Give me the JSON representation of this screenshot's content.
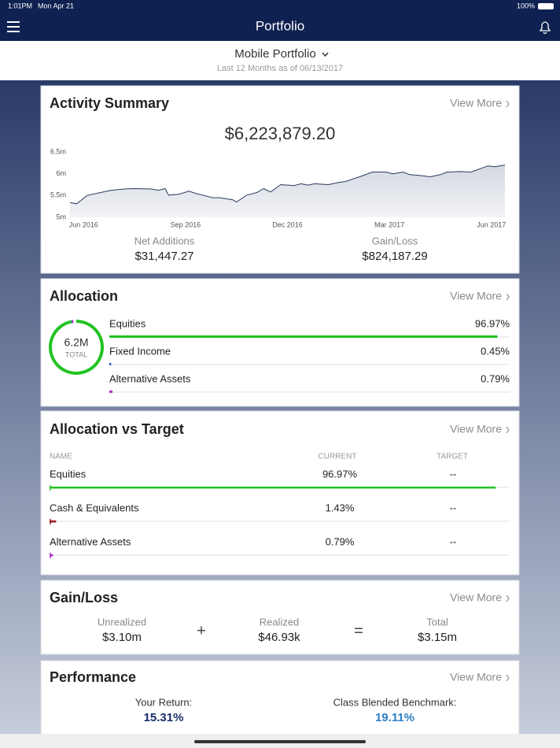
{
  "status_bar": {
    "time": "1:01PM",
    "date": "Mon Apr 21",
    "battery": "100%"
  },
  "header": {
    "title": "Portfolio"
  },
  "subheader": {
    "portfolio": "Mobile Portfolio",
    "period": "Last 12 Months as of 06/13/2017"
  },
  "activity_summary": {
    "title": "Activity Summary",
    "view_more": "View More",
    "total": "$6,223,879.20",
    "chart": {
      "type": "line",
      "color": "#2b3a5e",
      "x": [
        -0.4,
        -0.2,
        0.1,
        0.5,
        0.8,
        1.2,
        1.5,
        2.0,
        2.2,
        2.4,
        2.5,
        2.8,
        3.1,
        3.3,
        3.8,
        4.0,
        4.4,
        4.5,
        4.8,
        5.1,
        5.3,
        5.5,
        5.8,
        6.2,
        6.4,
        6.6,
        6.8,
        7.2,
        7.5,
        7.7,
        8.2,
        8.5,
        8.9,
        9.1,
        9.4,
        9.6,
        9.9,
        10.2,
        10.5,
        10.7,
        11.1,
        11.4,
        11.9,
        12.1,
        12.4
      ],
      "values": [
        5.34,
        5.31,
        5.5,
        5.57,
        5.62,
        5.65,
        5.66,
        5.65,
        5.62,
        5.66,
        5.51,
        5.53,
        5.6,
        5.55,
        5.45,
        5.45,
        5.4,
        5.35,
        5.51,
        5.57,
        5.66,
        5.58,
        5.75,
        5.73,
        5.77,
        5.74,
        5.77,
        5.75,
        5.8,
        5.82,
        5.95,
        6.04,
        6.04,
        6.0,
        6.04,
        5.98,
        5.96,
        5.93,
        5.98,
        6.04,
        6.05,
        6.04,
        6.18,
        6.16,
        6.2
      ],
      "xlim": [
        -0.4,
        12.4
      ],
      "ylim": [
        5,
        6.5
      ],
      "xticks": [
        {
          "value": 0,
          "label": "Jun 2016"
        },
        {
          "value": 3,
          "label": "Sep 2016"
        },
        {
          "value": 6,
          "label": "Dec 2016"
        },
        {
          "value": 9,
          "label": "Mar 2017"
        },
        {
          "value": 12,
          "label": "Jun 2017"
        }
      ],
      "yticks": [
        {
          "value": 5,
          "label": "5m"
        },
        {
          "value": 5.5,
          "label": "5.5m"
        },
        {
          "value": 6,
          "label": "6m"
        },
        {
          "value": 6.5,
          "label": "6.5m"
        }
      ]
    },
    "net_additions": {
      "label": "Net Additions",
      "value": "$31,447.27"
    },
    "gain_loss": {
      "label": "Gain/Loss",
      "value": "$824,187.29"
    }
  },
  "allocation": {
    "title": "Allocation",
    "view_more": "View More",
    "center_value": "6.2M",
    "center_label": "TOTAL",
    "rows": [
      {
        "name": "Equities",
        "value": 96.97,
        "label": "96.97%",
        "color": "#22c322"
      },
      {
        "name": "Fixed Income",
        "value": 0.45,
        "label": "0.45%",
        "color": "#3355cc"
      },
      {
        "name": "Alternative Assets",
        "value": 0.79,
        "label": "0.79%",
        "color": "#b030c8"
      }
    ]
  },
  "allocation_vs_target": {
    "title": "Allocation vs Target",
    "view_more": "View More",
    "columns": [
      "NAME",
      "CURRENT",
      "TARGET"
    ],
    "rows": [
      {
        "name": "Equities",
        "value": 96.97,
        "label": "96.97%",
        "target": "--",
        "color": "#22c322"
      },
      {
        "name": "Cash & Equivalents",
        "value": 1.43,
        "label": "1.43%",
        "target": "--",
        "color": "#9a1a1a"
      },
      {
        "name": "Alternative Assets",
        "value": 0.79,
        "label": "0.79%",
        "target": "--",
        "color": "#b030c8"
      }
    ]
  },
  "gain_loss": {
    "title": "Gain/Loss",
    "view_more": "View More",
    "operators": [
      "+",
      "="
    ],
    "items": [
      {
        "label": "Unrealized",
        "value": "$3.10m"
      },
      {
        "label": "Realized",
        "value": "$46.93k"
      },
      {
        "label": "Total",
        "value": "$3.15m"
      }
    ]
  },
  "performance": {
    "title": "Performance",
    "view_more": "View More",
    "your_return": {
      "label": "Your Return:",
      "value": "15.31%"
    },
    "benchmark": {
      "label": "Class Blended Benchmark:",
      "value": "19.11%"
    }
  }
}
